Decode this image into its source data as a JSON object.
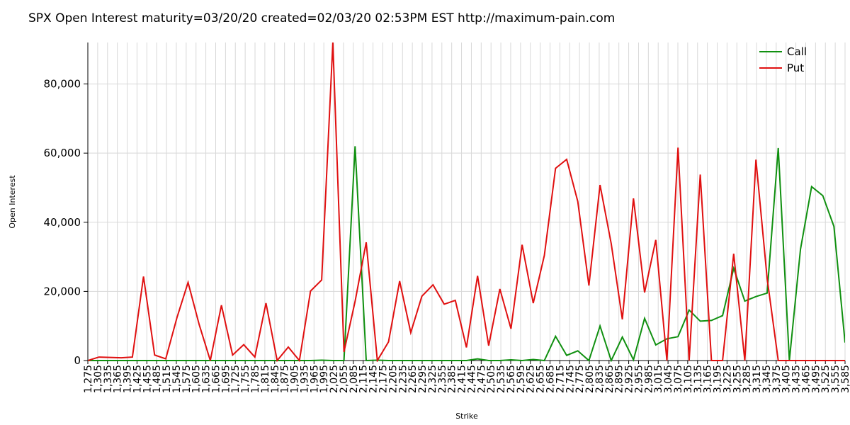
{
  "chart_data": {
    "type": "line",
    "title": "SPX Open Interest maturity=03/20/20 created=02/03/20 02:53PM EST http://maximum-pain.com",
    "xlabel": "Strike",
    "ylabel": "Open Interest",
    "ylim": [
      0,
      92000
    ],
    "yticks": [
      0,
      20000,
      40000,
      60000,
      80000
    ],
    "ytick_labels": [
      "0",
      "20,000",
      "40,000",
      "60,000",
      "80,000"
    ],
    "grid": true,
    "legend_position": "top-right",
    "categories": [
      "1,275",
      "1,305",
      "1,335",
      "1,365",
      "1,395",
      "1,425",
      "1,455",
      "1,485",
      "1,515",
      "1,545",
      "1,575",
      "1,605",
      "1,635",
      "1,665",
      "1,695",
      "1,725",
      "1,755",
      "1,785",
      "1,815",
      "1,845",
      "1,875",
      "1,905",
      "1,935",
      "1,965",
      "1,995",
      "2,025",
      "2,055",
      "2,085",
      "2,115",
      "2,145",
      "2,175",
      "2,205",
      "2,235",
      "2,265",
      "2,295",
      "2,325",
      "2,355",
      "2,385",
      "2,415",
      "2,445",
      "2,475",
      "2,505",
      "2,535",
      "2,565",
      "2,595",
      "2,625",
      "2,655",
      "2,685",
      "2,715",
      "2,745",
      "2,775",
      "2,805",
      "2,835",
      "2,865",
      "2,895",
      "2,925",
      "2,955",
      "2,985",
      "3,015",
      "3,045",
      "3,075",
      "3,105",
      "3,135",
      "3,165",
      "3,195",
      "3,225",
      "3,255",
      "3,285",
      "3,315",
      "3,345",
      "3,375",
      "3,405",
      "3,435",
      "3,465",
      "3,495",
      "3,525",
      "3,555",
      "3,585"
    ],
    "series": [
      {
        "name": "Call",
        "color": "#109010",
        "points": [
          [
            0,
            0
          ],
          [
            1,
            0
          ],
          [
            2,
            0
          ],
          [
            3,
            0
          ],
          [
            4,
            0
          ],
          [
            5,
            0
          ],
          [
            6,
            0
          ],
          [
            7,
            0
          ],
          [
            8,
            0
          ],
          [
            9,
            0
          ],
          [
            10,
            0
          ],
          [
            11,
            0
          ],
          [
            12,
            0
          ],
          [
            13,
            0
          ],
          [
            14,
            0
          ],
          [
            15,
            0
          ],
          [
            16,
            0
          ],
          [
            17,
            0
          ],
          [
            18,
            0
          ],
          [
            19,
            0
          ],
          [
            20,
            0
          ],
          [
            21,
            100
          ],
          [
            22,
            0
          ],
          [
            23,
            0
          ],
          [
            24,
            62000
          ],
          [
            25,
            0
          ],
          [
            26,
            100
          ],
          [
            27,
            0
          ],
          [
            28,
            0
          ],
          [
            29,
            0
          ],
          [
            30,
            0
          ],
          [
            31,
            0
          ],
          [
            32,
            0
          ],
          [
            33,
            0
          ],
          [
            34,
            0
          ],
          [
            35,
            500
          ],
          [
            36,
            0
          ],
          [
            37,
            0
          ],
          [
            38,
            200
          ],
          [
            39,
            0
          ],
          [
            40,
            300
          ],
          [
            41,
            0
          ],
          [
            42,
            7000
          ],
          [
            43,
            1500
          ],
          [
            44,
            2800
          ],
          [
            45,
            0
          ],
          [
            46,
            10000
          ],
          [
            47,
            0
          ],
          [
            48,
            6800
          ],
          [
            49,
            200
          ],
          [
            50,
            12200
          ],
          [
            51,
            4500
          ],
          [
            52,
            6300
          ],
          [
            53,
            6900
          ],
          [
            54,
            14600
          ],
          [
            55,
            11400
          ],
          [
            56,
            11600
          ],
          [
            57,
            13000
          ],
          [
            58,
            26700
          ],
          [
            59,
            17200
          ],
          [
            60,
            18500
          ],
          [
            61,
            19500
          ],
          [
            62,
            61500
          ],
          [
            63,
            0
          ],
          [
            64,
            32200
          ],
          [
            65,
            50300
          ],
          [
            66,
            47700
          ],
          [
            67,
            38800
          ],
          [
            68,
            5200
          ]
        ]
      },
      {
        "name": "Put",
        "color": "#e01010",
        "points": [
          [
            0,
            0
          ],
          [
            1,
            1000
          ],
          [
            2,
            900
          ],
          [
            3,
            800
          ],
          [
            4,
            1000
          ],
          [
            5,
            24300
          ],
          [
            6,
            1600
          ],
          [
            7,
            500
          ],
          [
            8,
            12400
          ],
          [
            9,
            22600
          ],
          [
            10,
            10400
          ],
          [
            11,
            0
          ],
          [
            12,
            16000
          ],
          [
            13,
            1600
          ],
          [
            14,
            4600
          ],
          [
            15,
            1000
          ],
          [
            16,
            16600
          ],
          [
            17,
            0
          ],
          [
            18,
            3900
          ],
          [
            19,
            0
          ],
          [
            20,
            20100
          ],
          [
            21,
            23300
          ],
          [
            22,
            92000
          ],
          [
            23,
            2500
          ],
          [
            24,
            17100
          ],
          [
            25,
            34200
          ],
          [
            26,
            0
          ],
          [
            27,
            5400
          ],
          [
            28,
            23000
          ],
          [
            29,
            8100
          ],
          [
            30,
            18600
          ],
          [
            31,
            21900
          ],
          [
            32,
            16300
          ],
          [
            33,
            17400
          ],
          [
            34,
            3800
          ],
          [
            35,
            24500
          ],
          [
            36,
            4300
          ],
          [
            37,
            20700
          ],
          [
            38,
            9200
          ],
          [
            39,
            33500
          ],
          [
            40,
            16600
          ],
          [
            41,
            30400
          ],
          [
            42,
            55600
          ],
          [
            43,
            58200
          ],
          [
            44,
            46000
          ],
          [
            45,
            21700
          ],
          [
            46,
            50800
          ],
          [
            47,
            33800
          ],
          [
            48,
            11900
          ],
          [
            49,
            46900
          ],
          [
            50,
            19700
          ],
          [
            51,
            34900
          ],
          [
            52,
            0
          ],
          [
            53,
            61600
          ],
          [
            54,
            0
          ],
          [
            55,
            53800
          ],
          [
            56,
            0
          ],
          [
            57,
            0
          ],
          [
            58,
            30900
          ],
          [
            59,
            0
          ],
          [
            60,
            58100
          ],
          [
            61,
            23800
          ],
          [
            62,
            0
          ],
          [
            63,
            0
          ],
          [
            64,
            0
          ],
          [
            65,
            0
          ],
          [
            66,
            0
          ],
          [
            67,
            0
          ],
          [
            68,
            0
          ]
        ]
      }
    ]
  }
}
